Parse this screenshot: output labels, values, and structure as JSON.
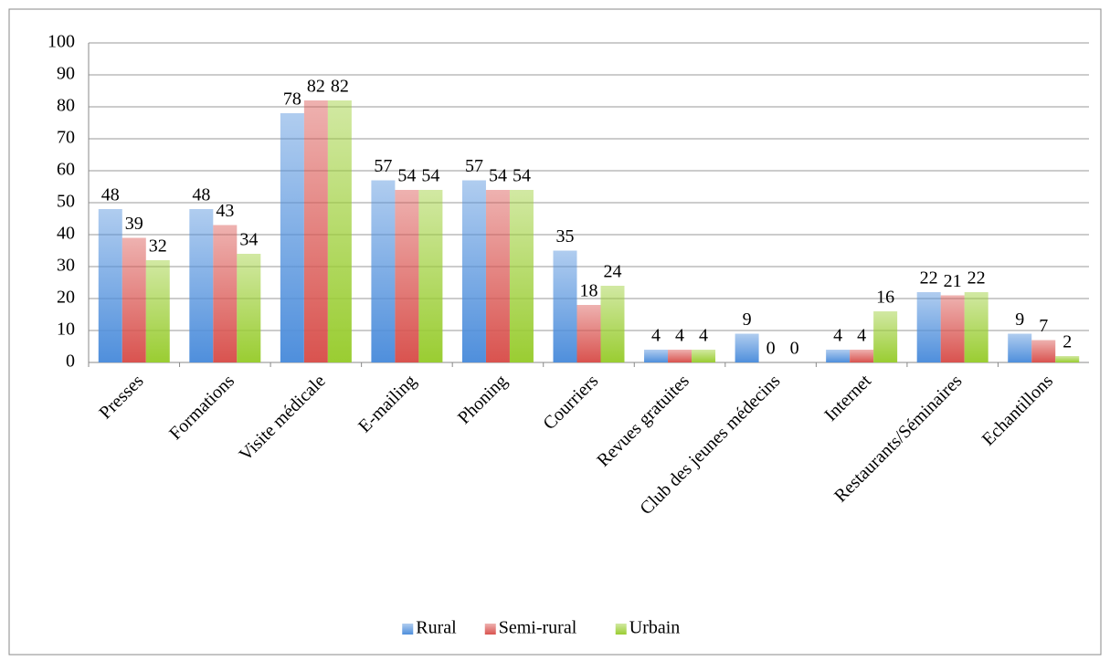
{
  "chart_data": {
    "type": "bar",
    "categories": [
      "Presses",
      "Formations",
      "Visite médicale",
      "E-mailing",
      "Phoning",
      "Courriers",
      "Revues gratuites",
      "Club des jeunes médecins",
      "Internet",
      "Restaurants/Séminaires",
      "Echantillons"
    ],
    "series": [
      {
        "name": "Rural",
        "color": "#4f8fdc",
        "values": [
          48,
          48,
          78,
          57,
          57,
          35,
          4,
          9,
          4,
          22,
          9
        ]
      },
      {
        "name": "Semi-rural",
        "color": "#d9534f",
        "values": [
          39,
          43,
          82,
          54,
          54,
          18,
          4,
          0,
          4,
          21,
          7
        ]
      },
      {
        "name": "Urbain",
        "color": "#9acd32",
        "values": [
          32,
          34,
          82,
          54,
          54,
          24,
          4,
          0,
          16,
          22,
          2
        ]
      }
    ],
    "ylim": [
      0,
      100
    ],
    "yticks": [
      0,
      10,
      20,
      30,
      40,
      50,
      60,
      70,
      80,
      90,
      100
    ],
    "grid": true,
    "legend": "bottom"
  }
}
